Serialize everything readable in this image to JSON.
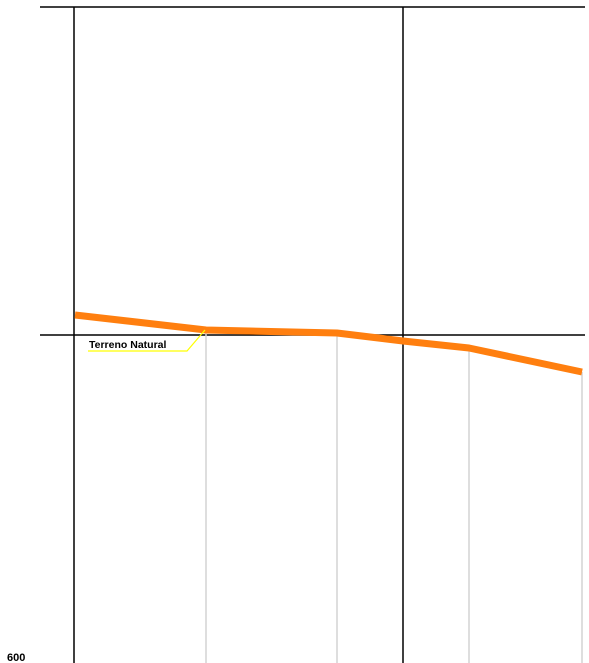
{
  "profile": {
    "terrain_label": "Terreno Natural",
    "axis_value_label": "600",
    "colors": {
      "terrain_line": "#ff7f0f",
      "leader_line": "#ffff00",
      "grid_major": "#000000",
      "grid_minor": "#d3d3d3",
      "text": "#000000"
    }
  }
}
